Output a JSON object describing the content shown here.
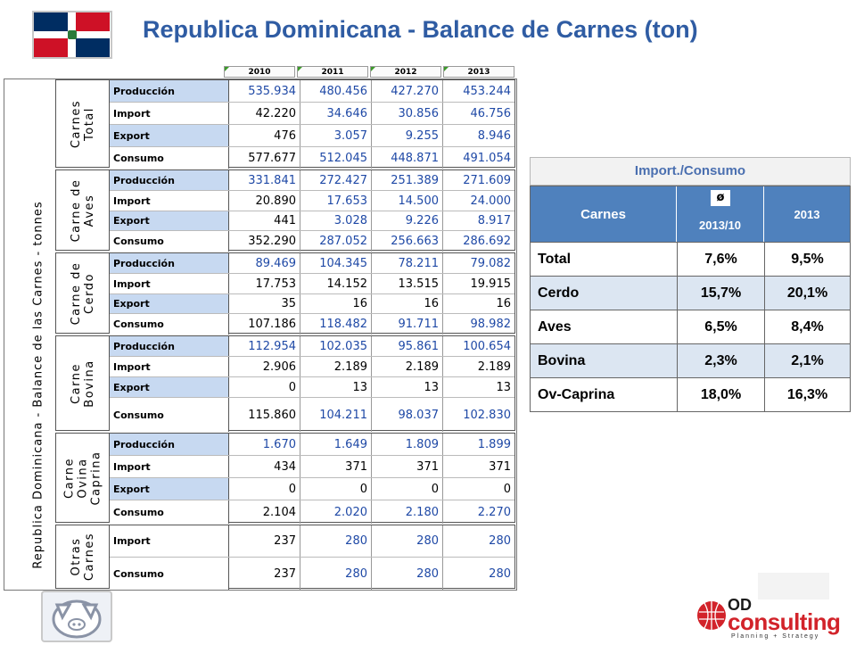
{
  "title": "Republica Dominicana - Balance de Carnes  (ton)",
  "left_table": {
    "vertical_title": "Republica Dominicana - Balance de las Carnes - tonnes",
    "years": [
      "2010",
      "2011",
      "2012",
      "2013"
    ],
    "groups": [
      {
        "label": "Carnes\nTotal",
        "rows": [
          {
            "label": "Producción",
            "values": [
              "535.934",
              "480.456",
              "427.270",
              "453.244"
            ]
          },
          {
            "label": "Import",
            "values": [
              "42.220",
              "34.646",
              "30.856",
              "46.756"
            ]
          },
          {
            "label": "Export",
            "values": [
              "476",
              "3.057",
              "9.255",
              "8.946"
            ]
          },
          {
            "label": "Consumo",
            "values": [
              "577.677",
              "512.045",
              "448.871",
              "491.054"
            ]
          }
        ]
      },
      {
        "label": "Carne de\nAves",
        "rows": [
          {
            "label": "Producción",
            "values": [
              "331.841",
              "272.427",
              "251.389",
              "271.609"
            ]
          },
          {
            "label": "Import",
            "values": [
              "20.890",
              "17.653",
              "14.500",
              "24.000"
            ]
          },
          {
            "label": "Export",
            "values": [
              "441",
              "3.028",
              "9.226",
              "8.917"
            ]
          },
          {
            "label": "Consumo",
            "values": [
              "352.290",
              "287.052",
              "256.663",
              "286.692"
            ]
          }
        ]
      },
      {
        "label": "Carne de\nCerdo",
        "rows": [
          {
            "label": "Producción",
            "values": [
              "89.469",
              "104.345",
              "78.211",
              "79.082"
            ]
          },
          {
            "label": "Import",
            "values": [
              "17.753",
              "14.152",
              "13.515",
              "19.915"
            ]
          },
          {
            "label": "Export",
            "values": [
              "35",
              "16",
              "16",
              "16"
            ]
          },
          {
            "label": "Consumo",
            "values": [
              "107.186",
              "118.482",
              "91.711",
              "98.982"
            ]
          }
        ]
      },
      {
        "label": "Carne\nBovina",
        "rows": [
          {
            "label": "Producción",
            "values": [
              "112.954",
              "102.035",
              "95.861",
              "100.654"
            ]
          },
          {
            "label": "Import",
            "values": [
              "2.906",
              "2.189",
              "2.189",
              "2.189"
            ]
          },
          {
            "label": "Export",
            "values": [
              "0",
              "13",
              "13",
              "13"
            ]
          },
          {
            "label": "Consumo",
            "values": [
              "115.860",
              "104.211",
              "98.037",
              "102.830"
            ]
          }
        ]
      },
      {
        "label": "Carne\nOvina\nCaprina",
        "rows": [
          {
            "label": "Producción",
            "values": [
              "1.670",
              "1.649",
              "1.809",
              "1.899"
            ]
          },
          {
            "label": "Import",
            "values": [
              "434",
              "371",
              "371",
              "371"
            ]
          },
          {
            "label": "Export",
            "values": [
              "0",
              "0",
              "0",
              "0"
            ]
          },
          {
            "label": "Consumo",
            "values": [
              "2.104",
              "2.020",
              "2.180",
              "2.270"
            ]
          }
        ]
      },
      {
        "label": "Otras\nCarnes",
        "rows": [
          {
            "label": "Import",
            "values": [
              "237",
              "280",
              "280",
              "280"
            ]
          },
          {
            "label": "Consumo",
            "values": [
              "237",
              "280",
              "280",
              "280"
            ]
          }
        ]
      }
    ]
  },
  "right_table": {
    "title": "Import./Consumo",
    "header_col1": "Carnes",
    "header_col2_symbol": "ø",
    "header_col2": "2013/10",
    "header_col3": "2013",
    "rows": [
      {
        "name": "Total",
        "v1": "7,6%",
        "v2": "9,5%"
      },
      {
        "name": "Cerdo",
        "v1": "15,7%",
        "v2": "20,1%"
      },
      {
        "name": "Aves",
        "v1": "6,5%",
        "v2": "8,4%"
      },
      {
        "name": "Bovina",
        "v1": "2,3%",
        "v2": "2,1%"
      },
      {
        "name": "Ov-Caprina",
        "v1": "18,0%",
        "v2": "16,3%"
      }
    ]
  },
  "logo": {
    "od": "OD",
    "consulting": "consulting",
    "tagline": "Planning + Strategy"
  },
  "colors": {
    "title": "#2f5ca3",
    "label_fill": "#c7d9f1",
    "header_blue": "#4f81bd",
    "value_blue": "#1f49a6",
    "flag_blue": "#002d62",
    "flag_red": "#ce1126",
    "logo_red": "#d2232a"
  }
}
